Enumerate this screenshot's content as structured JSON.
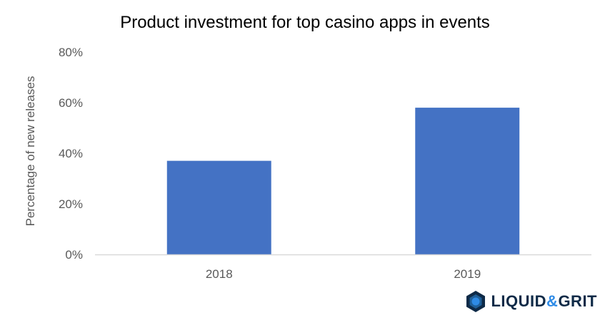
{
  "chart_data": {
    "type": "bar",
    "title": "Product investment for top casino apps in events",
    "ylabel": "Percentage of new releases",
    "xlabel": "",
    "categories": [
      "2018",
      "2019"
    ],
    "values": [
      37,
      58
    ],
    "ylim": [
      0,
      80
    ],
    "yticks": [
      "0%",
      "20%",
      "40%",
      "60%",
      "80%"
    ],
    "ytick_values": [
      0,
      20,
      40,
      60,
      80
    ],
    "grid": false,
    "bar_color": "#4472c4",
    "axis_color": "#d9d9d9"
  },
  "logo": {
    "part1": "LIQUID",
    "amp": "&",
    "part2": "GRIT",
    "icon": "hexagon-logo-icon",
    "color_dark": "#0e2a47",
    "color_accent": "#2e8be6"
  }
}
